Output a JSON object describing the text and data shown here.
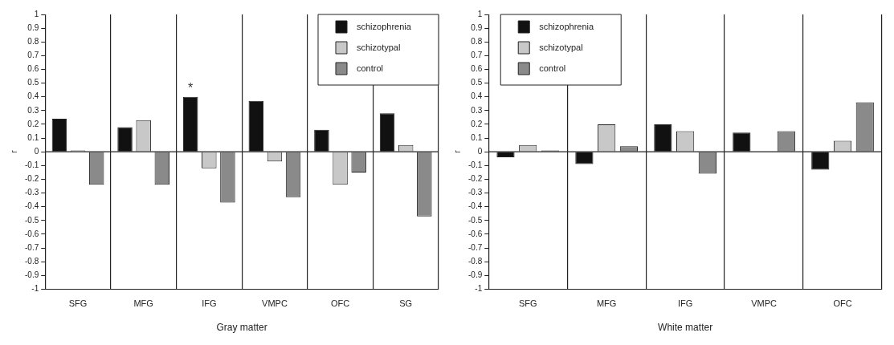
{
  "chart_data": [
    {
      "type": "bar",
      "xlabel": "Gray matter",
      "ylabel": "r",
      "categories": [
        "SFG",
        "MFG",
        "IFG",
        "VMPC",
        "OFC",
        "SG"
      ],
      "series": [
        {
          "name": "schizophrenia",
          "color": "#111111",
          "values": [
            0.24,
            0.18,
            0.4,
            0.37,
            0.16,
            0.28
          ]
        },
        {
          "name": "schizotypal",
          "color": "#c8c8c8",
          "values": [
            0.01,
            0.23,
            -0.12,
            -0.07,
            -0.24,
            0.05
          ]
        },
        {
          "name": "control",
          "color": "#8a8a8a",
          "values": [
            -0.24,
            -0.24,
            -0.37,
            -0.33,
            -0.15,
            -0.47
          ]
        }
      ],
      "ylim": [
        -1,
        1
      ],
      "yticks": [
        -1,
        -0.9,
        -0.8,
        -0.7,
        -0.6,
        -0.5,
        -0.4,
        -0.3,
        -0.2,
        -0.1,
        0,
        0.1,
        0.2,
        0.3,
        0.4,
        0.5,
        0.6,
        0.7,
        0.8,
        0.9,
        1
      ],
      "grid": "x",
      "legend": "top right",
      "ref_lines": [
        {
          "axis": "y",
          "value": 0
        }
      ],
      "annotations": [
        "*"
      ]
    },
    {
      "type": "bar",
      "xlabel": "White matter",
      "ylabel": "r",
      "categories": [
        "SFG",
        "MFG",
        "IFG",
        "VMPC",
        "OFC"
      ],
      "series": [
        {
          "name": "schizophrenia",
          "color": "#111111",
          "values": [
            -0.04,
            -0.09,
            0.2,
            0.14,
            -0.13
          ]
        },
        {
          "name": "schizotypal",
          "color": "#c8c8c8",
          "values": [
            0.05,
            0.2,
            0.15,
            0,
            0.08
          ]
        },
        {
          "name": "control",
          "color": "#8a8a8a",
          "values": [
            0.01,
            0.04,
            -0.16,
            0.15,
            0.36
          ]
        }
      ],
      "ylim": [
        -1,
        1
      ],
      "yticks": [
        -1,
        -0.9,
        -0.8,
        -0.7,
        -0.6,
        -0.5,
        -0.4,
        -0.3,
        -0.2,
        -0.1,
        0,
        0.1,
        0.2,
        0.3,
        0.4,
        0.5,
        0.6,
        0.7,
        0.8,
        0.9,
        1
      ],
      "grid": "x",
      "legend": "top left",
      "ref_lines": [
        {
          "axis": "y",
          "value": 0
        }
      ]
    }
  ]
}
